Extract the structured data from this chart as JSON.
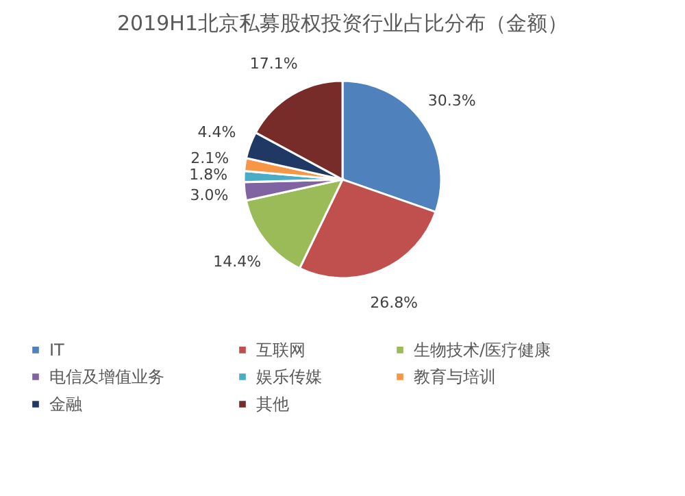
{
  "chart_data": {
    "type": "pie",
    "title": "2019H1北京私募股权投资行业占比分布（金额）",
    "categories": [
      "IT",
      "互联网",
      "生物技术/医疗健康",
      "电信及增值业务",
      "娱乐传媒",
      "教育与培训",
      "金融",
      "其他"
    ],
    "values": [
      30.3,
      26.8,
      14.4,
      3.0,
      1.8,
      2.1,
      4.4,
      17.1
    ],
    "value_labels": [
      "30.3%",
      "26.8%",
      "14.4%",
      "3.0%",
      "1.8%",
      "2.1%",
      "4.4%",
      "17.1%"
    ],
    "colors": [
      "#4f81bd",
      "#c0504d",
      "#9bbb59",
      "#8064a2",
      "#4bacc6",
      "#f79646",
      "#1f3864",
      "#772c2a"
    ],
    "legend": "bottom"
  }
}
